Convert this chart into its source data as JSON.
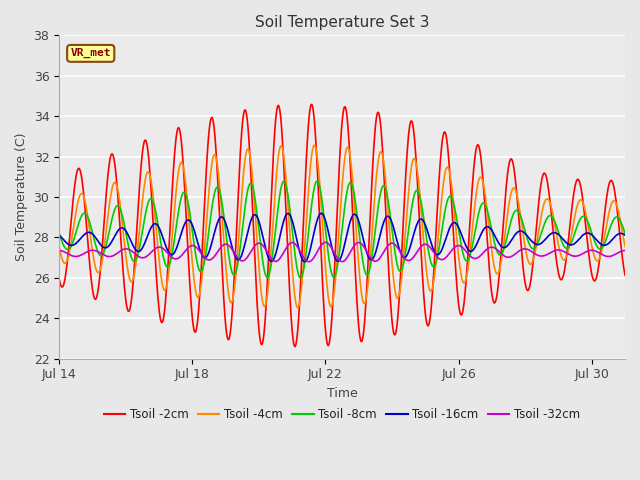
{
  "title": "Soil Temperature Set 3",
  "xlabel": "Time",
  "ylabel": "Soil Temperature (C)",
  "ylim": [
    22,
    38
  ],
  "xlim": [
    0,
    17
  ],
  "x_tick_labels": [
    "Jul 14",
    "Jul 18",
    "Jul 22",
    "Jul 26",
    "Jul 30"
  ],
  "x_tick_positions": [
    0,
    4,
    8,
    12,
    16
  ],
  "y_tick_positions": [
    22,
    24,
    26,
    28,
    30,
    32,
    34,
    36,
    38
  ],
  "bg_color": "#e8e8e8",
  "plot_bg_color": "#ebebeb",
  "annotation_label": "VR_met",
  "annotation_box_color": "#ffff99",
  "annotation_border_color": "#8b4513",
  "annotation_text_color": "#8b0000",
  "series": {
    "Tsoil -2cm": {
      "color": "#ff0000",
      "lw": 1.2
    },
    "Tsoil -4cm": {
      "color": "#ff8800",
      "lw": 1.2
    },
    "Tsoil -8cm": {
      "color": "#00cc00",
      "lw": 1.2
    },
    "Tsoil -16cm": {
      "color": "#0000cc",
      "lw": 1.2
    },
    "Tsoil -32cm": {
      "color": "#cc00cc",
      "lw": 1.2
    }
  },
  "figsize": [
    6.4,
    4.8
  ],
  "dpi": 100
}
